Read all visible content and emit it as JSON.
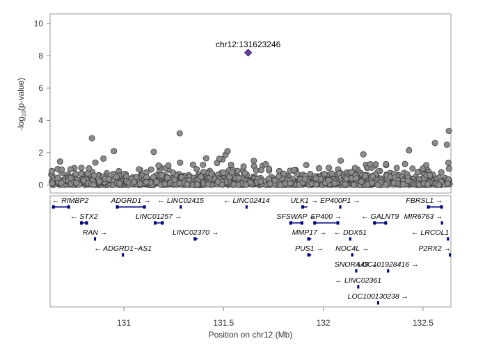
{
  "chart_data": {
    "type": "scatter",
    "ylabel_main": "-log",
    "ylabel_sub": "10",
    "ylabel_tail": "(p-value)",
    "xlabel": "Position on chr12 (Mb)",
    "xlim": [
      130.63,
      132.64
    ],
    "ylim": [
      -0.5,
      10.6
    ],
    "yticks": [
      "0",
      "2",
      "4",
      "6",
      "8",
      "10"
    ],
    "xticks": [
      "131",
      "131.5",
      "132",
      "132.5"
    ],
    "lead_snp": {
      "label": "chr12:131623246",
      "x": 131.623246,
      "y": 8.2
    },
    "highlighted_points": [
      {
        "x": 130.84,
        "y": 2.9
      },
      {
        "x": 131.28,
        "y": 3.2
      },
      {
        "x": 132.63,
        "y": 3.35
      },
      {
        "x": 130.68,
        "y": 1.45
      },
      {
        "x": 130.95,
        "y": 2.1
      },
      {
        "x": 131.15,
        "y": 2.05
      },
      {
        "x": 131.52,
        "y": 2.1
      },
      {
        "x": 132.43,
        "y": 2.15
      },
      {
        "x": 132.56,
        "y": 2.6
      },
      {
        "x": 132.62,
        "y": 2.5
      }
    ],
    "genes": [
      {
        "name": "RIMBP2",
        "label": "← RIMBP2",
        "start": 130.64,
        "end": 130.73,
        "row": 0
      },
      {
        "name": "ADGRD1",
        "label": "ADGRD1 →",
        "start": 130.96,
        "end": 131.11,
        "row": 0
      },
      {
        "name": "LINC02415",
        "label": "← LINC02415",
        "start": 131.28,
        "end": 131.29,
        "row": 0
      },
      {
        "name": "LINC02414",
        "label": "← LINC02414",
        "start": 131.61,
        "end": 131.62,
        "row": 0
      },
      {
        "name": "ULK1",
        "label": "ULK1 →",
        "start": 131.89,
        "end": 131.92,
        "row": 0
      },
      {
        "name": "EP400P1",
        "label": "EP400P1 →",
        "start": 132.08,
        "end": 132.09,
        "row": 0
      },
      {
        "name": "FBRSL1",
        "label": "FBRSL1 →",
        "start": 132.52,
        "end": 132.6,
        "row": 0
      },
      {
        "name": "STX2",
        "label": "← STX2",
        "start": 130.78,
        "end": 130.82,
        "row": 1
      },
      {
        "name": "LINC01257",
        "label": "LINC01257 →",
        "start": 131.15,
        "end": 131.2,
        "row": 1
      },
      {
        "name": "SFSWAP",
        "label": "SFSWAP →",
        "start": 131.83,
        "end": 131.9,
        "row": 1
      },
      {
        "name": "EP400",
        "label": "EP400 →",
        "start": 131.95,
        "end": 132.08,
        "row": 1
      },
      {
        "name": "GALNT9",
        "label": "← GALNT9",
        "start": 132.25,
        "end": 132.32,
        "row": 1
      },
      {
        "name": "MIR6763",
        "label": "MIR6763 →",
        "start": 132.59,
        "end": 132.595,
        "row": 1
      },
      {
        "name": "RAN",
        "label": "RAN →",
        "start": 130.85,
        "end": 130.86,
        "row": 2
      },
      {
        "name": "LINC02370",
        "label": "LINC02370 →",
        "start": 131.35,
        "end": 131.37,
        "row": 2
      },
      {
        "name": "MMP17",
        "label": "MMP17 →",
        "start": 131.92,
        "end": 131.94,
        "row": 2
      },
      {
        "name": "DDX51",
        "label": "← DDX51",
        "start": 132.13,
        "end": 132.14,
        "row": 2
      },
      {
        "name": "LRCOL1",
        "label": "← LRCOL1",
        "start": 132.62,
        "end": 132.63,
        "row": 2
      },
      {
        "name": "ADGRD1-AS1",
        "label": "← ADGRD1−AS1",
        "start": 130.99,
        "end": 131.0,
        "row": 3
      },
      {
        "name": "PUS1",
        "label": "PUS1 →",
        "start": 131.92,
        "end": 131.94,
        "row": 3
      },
      {
        "name": "NOC4L",
        "label": "NOC4L →",
        "start": 132.14,
        "end": 132.15,
        "row": 3
      },
      {
        "name": "P2RX2",
        "label": "P2RX2 →",
        "start": 132.63,
        "end": 132.64,
        "row": 3
      },
      {
        "name": "SNORA49",
        "label": "SNORA49 →",
        "start": 132.16,
        "end": 132.165,
        "row": 4
      },
      {
        "name": "LOC101928416",
        "label": "LOC101928416 →",
        "start": 132.32,
        "end": 132.325,
        "row": 4
      },
      {
        "name": "LINC02361",
        "label": "← LINC02361",
        "start": 132.17,
        "end": 132.175,
        "row": 5
      },
      {
        "name": "LOC100130238",
        "label": "LOC100130238 →",
        "start": 132.27,
        "end": 132.275,
        "row": 6
      }
    ]
  }
}
